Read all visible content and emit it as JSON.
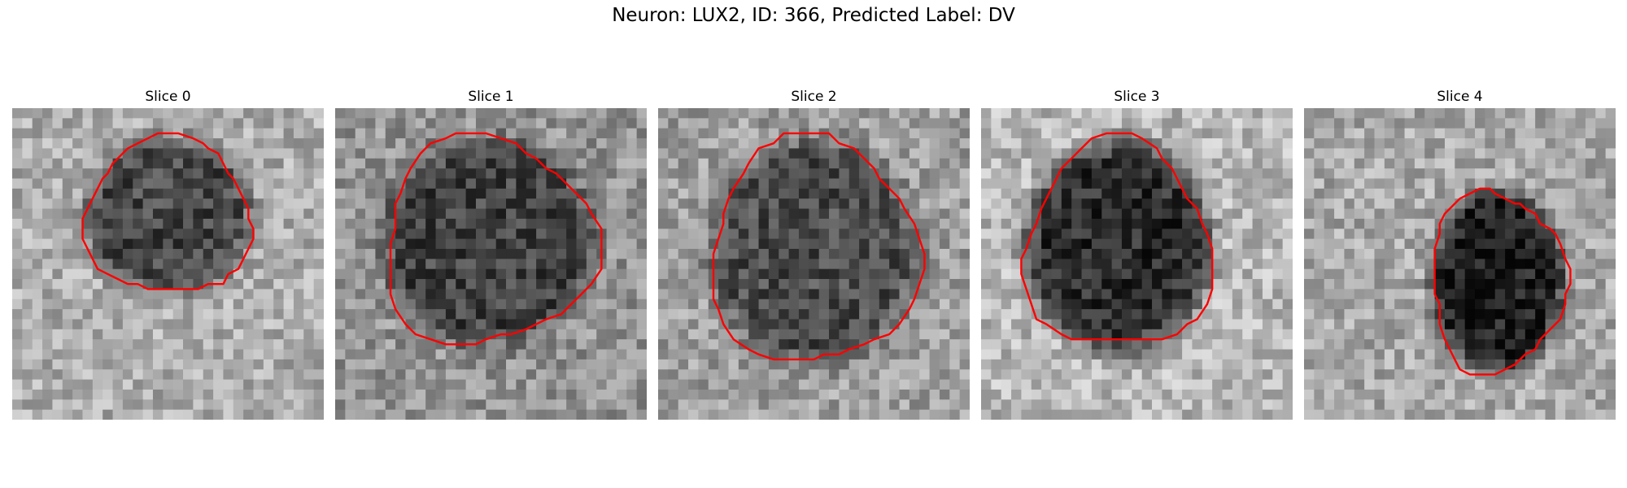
{
  "figure": {
    "title": "Neuron: LUX2, ID: 366, Predicted Label: DV",
    "contour_color": "#ff0000"
  },
  "panels": [
    {
      "title": "Slice 0",
      "seed": 11,
      "blob_shade": 0.28,
      "background_shade": 0.68
    },
    {
      "title": "Slice 1",
      "seed": 23,
      "blob_shade": 0.26,
      "background_shade": 0.58
    },
    {
      "title": "Slice 2",
      "seed": 37,
      "blob_shade": 0.3,
      "background_shade": 0.62
    },
    {
      "title": "Slice 3",
      "seed": 41,
      "blob_shade": 0.18,
      "background_shade": 0.72
    },
    {
      "title": "Slice 4",
      "seed": 53,
      "blob_shade": 0.12,
      "background_shade": 0.66
    }
  ]
}
